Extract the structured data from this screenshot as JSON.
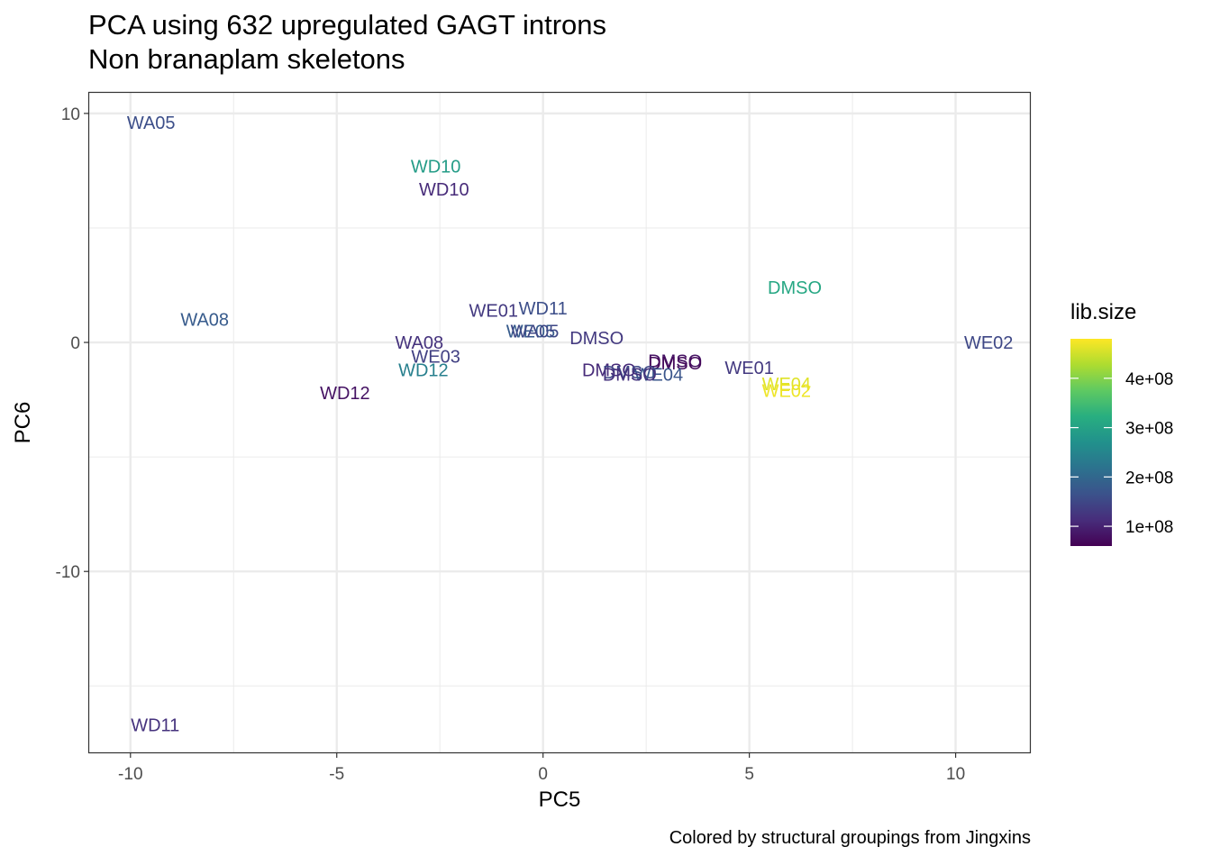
{
  "chart_data": {
    "type": "scatter",
    "title": "PCA using 632 upregulated GAGT introns",
    "subtitle": "Non branaplam skeletons",
    "xlabel": "PC5",
    "ylabel": "PC6",
    "caption": "Colored by structural groupings from Jingxins",
    "xlim": [
      -11.0,
      11.8
    ],
    "ylim": [
      -17.9,
      10.9
    ],
    "x_ticks": [
      -10,
      -5,
      0,
      5,
      10
    ],
    "x_tick_labels": [
      "-10",
      "-5",
      "0",
      "5",
      "10"
    ],
    "y_ticks": [
      10,
      0,
      -10
    ],
    "y_tick_labels": [
      "10",
      "0",
      "-10"
    ],
    "grid": true,
    "legend": {
      "title": "lib.size",
      "position": "right",
      "type": "colorbar",
      "range": [
        60000000,
        480000000
      ],
      "ticks": [
        100000000,
        200000000,
        300000000,
        400000000
      ],
      "tick_labels": [
        "1e+08",
        "2e+08",
        "3e+08",
        "4e+08"
      ]
    },
    "color_scale": {
      "name": "viridis",
      "stops": [
        "#440154",
        "#472d7b",
        "#3b528b",
        "#2c728e",
        "#21918c",
        "#28ae80",
        "#5ec962",
        "#addc30",
        "#fde725"
      ]
    },
    "points": [
      {
        "label": "WA05",
        "x": -9.5,
        "y": 9.6,
        "lib_size": 160000000
      },
      {
        "label": "WD10",
        "x": -2.6,
        "y": 7.7,
        "lib_size": 290000000
      },
      {
        "label": "WD10",
        "x": -2.4,
        "y": 6.7,
        "lib_size": 110000000
      },
      {
        "label": "WA08",
        "x": -8.2,
        "y": 1.0,
        "lib_size": 180000000
      },
      {
        "label": "WE01",
        "x": -1.2,
        "y": 1.4,
        "lib_size": 130000000
      },
      {
        "label": "WD11",
        "x": 0.0,
        "y": 1.5,
        "lib_size": 160000000
      },
      {
        "label": "WE05",
        "x": -0.3,
        "y": 0.5,
        "lib_size": 180000000
      },
      {
        "label": "WA05",
        "x": -0.2,
        "y": 0.5,
        "lib_size": 150000000
      },
      {
        "label": "DMSO",
        "x": 1.3,
        "y": 0.2,
        "lib_size": 130000000
      },
      {
        "label": "WA08",
        "x": -3.0,
        "y": 0.0,
        "lib_size": 120000000
      },
      {
        "label": "WE03",
        "x": -2.6,
        "y": -0.6,
        "lib_size": 140000000
      },
      {
        "label": "WD12",
        "x": -2.9,
        "y": -1.2,
        "lib_size": 240000000
      },
      {
        "label": "WD12",
        "x": -4.8,
        "y": -2.2,
        "lib_size": 80000000
      },
      {
        "label": "DMSO",
        "x": 3.2,
        "y": -0.8,
        "lib_size": 80000000
      },
      {
        "label": "DMSO",
        "x": 3.2,
        "y": -0.9,
        "lib_size": 70000000
      },
      {
        "label": "DMSO",
        "x": 1.6,
        "y": -1.2,
        "lib_size": 110000000
      },
      {
        "label": "DMSO",
        "x": 2.1,
        "y": -1.3,
        "lib_size": 150000000
      },
      {
        "label": "WE04",
        "x": 2.8,
        "y": -1.4,
        "lib_size": 170000000
      },
      {
        "label": "DMSO",
        "x": 2.1,
        "y": -1.4,
        "lib_size": 120000000
      },
      {
        "label": "WE01",
        "x": 5.0,
        "y": -1.1,
        "lib_size": 130000000
      },
      {
        "label": "WE04",
        "x": 5.9,
        "y": -1.8,
        "lib_size": 460000000
      },
      {
        "label": "WE02",
        "x": 5.9,
        "y": -2.1,
        "lib_size": 470000000
      },
      {
        "label": "DMSO",
        "x": 6.1,
        "y": 2.4,
        "lib_size": 310000000
      },
      {
        "label": "WE02",
        "x": 10.8,
        "y": 0.0,
        "lib_size": 150000000
      },
      {
        "label": "WD11",
        "x": -9.4,
        "y": -16.7,
        "lib_size": 120000000
      }
    ]
  }
}
